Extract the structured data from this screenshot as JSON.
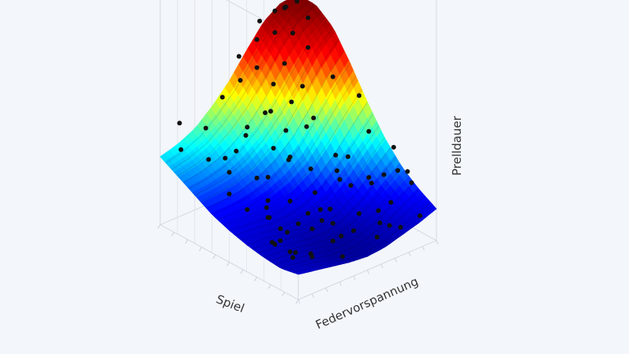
{
  "chart_data": {
    "type": "surface3d",
    "xlabel": "Federvorspannung",
    "ylabel": "Spiel",
    "zlabel": "Prelldauer",
    "colorscale": [
      "#00007f",
      "#0000ff",
      "#00ffff",
      "#ffff00",
      "#ff0000",
      "#7f0000"
    ],
    "surface": {
      "x": [
        0,
        0.125,
        0.25,
        0.375,
        0.5,
        0.625,
        0.75,
        0.875,
        1
      ],
      "y": [
        0,
        0.125,
        0.25,
        0.375,
        0.5,
        0.625,
        0.75,
        0.875,
        1
      ],
      "z": [
        [
          0.12,
          0.1,
          0.08,
          0.06,
          0.05,
          0.06,
          0.09,
          0.12,
          0.16
        ],
        [
          0.1,
          0.09,
          0.07,
          0.05,
          0.04,
          0.06,
          0.1,
          0.16,
          0.22
        ],
        [
          0.11,
          0.1,
          0.08,
          0.06,
          0.05,
          0.08,
          0.14,
          0.22,
          0.3
        ],
        [
          0.13,
          0.12,
          0.1,
          0.09,
          0.1,
          0.14,
          0.22,
          0.32,
          0.42
        ],
        [
          0.16,
          0.15,
          0.14,
          0.15,
          0.18,
          0.24,
          0.34,
          0.46,
          0.58
        ],
        [
          0.2,
          0.2,
          0.21,
          0.24,
          0.29,
          0.37,
          0.5,
          0.64,
          0.76
        ],
        [
          0.26,
          0.27,
          0.29,
          0.34,
          0.42,
          0.53,
          0.67,
          0.82,
          0.92
        ],
        [
          0.32,
          0.34,
          0.38,
          0.45,
          0.55,
          0.68,
          0.83,
          0.95,
          1.0
        ],
        [
          0.38,
          0.41,
          0.46,
          0.55,
          0.66,
          0.8,
          0.93,
          1.0,
          1.0
        ]
      ]
    },
    "points": [
      [
        0.03,
        0.05,
        0.22
      ],
      [
        0.08,
        0.12,
        0.14
      ],
      [
        0.12,
        0.03,
        0.19
      ],
      [
        0.16,
        0.22,
        0.1
      ],
      [
        0.2,
        0.1,
        0.28
      ],
      [
        0.22,
        0.35,
        0.16
      ],
      [
        0.25,
        0.15,
        0.07
      ],
      [
        0.28,
        0.28,
        0.2
      ],
      [
        0.3,
        0.05,
        0.3
      ],
      [
        0.32,
        0.4,
        0.08
      ],
      [
        0.35,
        0.18,
        0.24
      ],
      [
        0.37,
        0.6,
        0.12
      ],
      [
        0.4,
        0.08,
        0.05
      ],
      [
        0.42,
        0.3,
        0.33
      ],
      [
        0.44,
        0.5,
        0.18
      ],
      [
        0.46,
        0.15,
        0.12
      ],
      [
        0.48,
        0.7,
        0.22
      ],
      [
        0.5,
        0.25,
        0.03
      ],
      [
        0.52,
        0.45,
        0.1
      ],
      [
        0.54,
        0.1,
        0.25
      ],
      [
        0.56,
        0.62,
        0.35
      ],
      [
        0.58,
        0.35,
        0.15
      ],
      [
        0.6,
        0.2,
        0.08
      ],
      [
        0.62,
        0.8,
        0.3
      ],
      [
        0.64,
        0.05,
        0.18
      ],
      [
        0.66,
        0.5,
        0.05
      ],
      [
        0.68,
        0.3,
        0.28
      ],
      [
        0.7,
        0.9,
        0.45
      ],
      [
        0.72,
        0.15,
        0.02
      ],
      [
        0.74,
        0.65,
        0.2
      ],
      [
        0.76,
        0.4,
        0.38
      ],
      [
        0.78,
        0.85,
        0.15
      ],
      [
        0.8,
        0.22,
        0.12
      ],
      [
        0.82,
        0.55,
        0.3
      ],
      [
        0.84,
        0.1,
        0.06
      ],
      [
        0.86,
        0.75,
        0.42
      ],
      [
        0.88,
        0.35,
        0.2
      ],
      [
        0.9,
        0.6,
        0.1
      ],
      [
        0.92,
        0.2,
        0.33
      ],
      [
        0.94,
        0.88,
        0.28
      ],
      [
        0.96,
        0.45,
        0.16
      ],
      [
        0.98,
        0.7,
        0.08
      ],
      [
        0.1,
        0.6,
        0.3
      ],
      [
        0.15,
        0.8,
        0.4
      ],
      [
        0.05,
        0.9,
        0.45
      ],
      [
        0.2,
        0.7,
        0.35
      ],
      [
        0.08,
        0.45,
        0.28
      ],
      [
        0.25,
        0.92,
        0.5
      ],
      [
        0.3,
        0.75,
        0.42
      ],
      [
        0.12,
        0.98,
        0.55
      ],
      [
        0.35,
        0.88,
        0.3
      ],
      [
        0.4,
        0.95,
        0.62
      ],
      [
        0.45,
        0.82,
        0.48
      ],
      [
        0.5,
        0.92,
        0.7
      ],
      [
        0.55,
        0.98,
        0.8
      ],
      [
        0.6,
        0.9,
        0.75
      ],
      [
        0.65,
        0.95,
        0.88
      ],
      [
        0.7,
        0.98,
        0.96
      ],
      [
        0.75,
        0.92,
        0.9
      ],
      [
        0.8,
        0.97,
        0.99
      ],
      [
        0.85,
        0.95,
        1.0
      ],
      [
        0.9,
        0.99,
        0.97
      ],
      [
        0.95,
        0.96,
        1.0
      ],
      [
        0.88,
        0.92,
        0.85
      ],
      [
        0.78,
        0.88,
        0.72
      ],
      [
        0.92,
        0.85,
        0.78
      ],
      [
        0.97,
        0.9,
        0.92
      ],
      [
        0.83,
        0.8,
        0.6
      ],
      [
        0.73,
        0.78,
        0.55
      ],
      [
        0.63,
        0.72,
        0.44
      ],
      [
        0.58,
        0.82,
        0.52
      ],
      [
        0.68,
        0.86,
        0.64
      ],
      [
        0.48,
        0.86,
        0.4
      ],
      [
        0.38,
        0.68,
        0.26
      ],
      [
        0.33,
        0.55,
        0.2
      ],
      [
        0.27,
        0.48,
        0.15
      ],
      [
        0.18,
        0.4,
        0.22
      ],
      [
        0.13,
        0.3,
        0.12
      ],
      [
        0.06,
        0.25,
        0.18
      ],
      [
        0.02,
        0.15,
        0.25
      ],
      [
        0.99,
        0.3,
        0.4
      ],
      [
        0.97,
        0.15,
        0.26
      ],
      [
        0.93,
        0.05,
        0.12
      ],
      [
        0.89,
        0.1,
        0.38
      ],
      [
        0.99,
        0.55,
        0.6
      ],
      [
        0.95,
        0.7,
        0.66
      ],
      [
        0.91,
        0.4,
        0.48
      ],
      [
        0.87,
        0.25,
        0.3
      ],
      [
        0.79,
        0.12,
        0.22
      ],
      [
        0.71,
        0.05,
        0.14
      ]
    ],
    "grid": true,
    "legend": "none"
  }
}
